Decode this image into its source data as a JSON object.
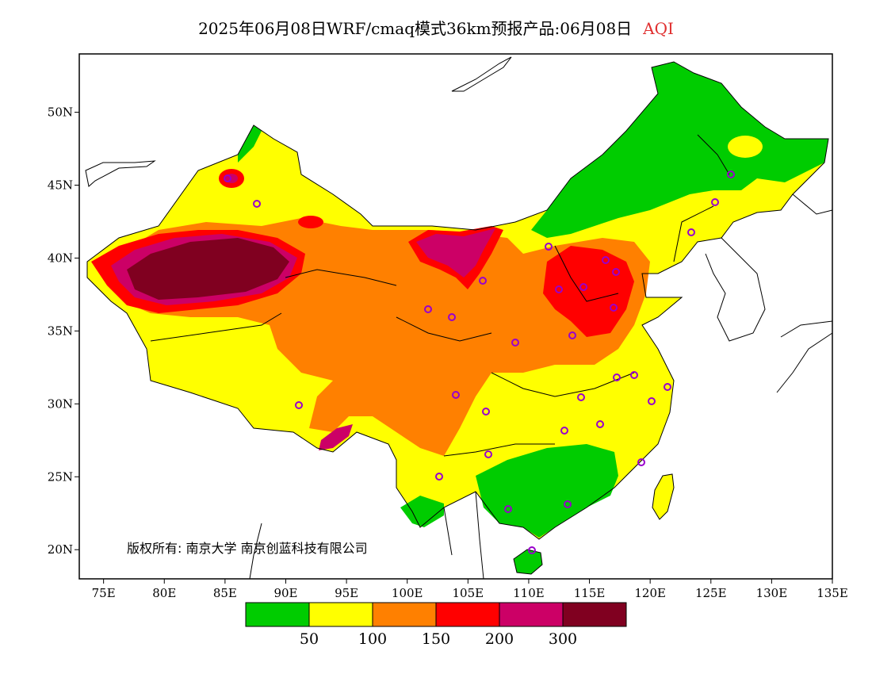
{
  "header": {
    "title": "2025年06月08日WRF/cmaq模式36km预报产品:06月08日",
    "pollutant": "AQI",
    "pollutant_color": "#e03030"
  },
  "map": {
    "lon_ticks": [
      "75E",
      "80E",
      "85E",
      "90E",
      "95E",
      "100E",
      "105E",
      "110E",
      "115E",
      "120E",
      "125E",
      "130E",
      "135E"
    ],
    "lat_ticks": [
      "20N",
      "25N",
      "30N",
      "35N",
      "40N",
      "45N",
      "50N"
    ],
    "lon_range": [
      73,
      135
    ],
    "lat_range": [
      18,
      54
    ],
    "copyright": "版权所有: 南京大学  南京创蓝科技有限公司"
  },
  "colorbar": {
    "colors": [
      "#00cc00",
      "#ffff00",
      "#ff8000",
      "#ff0000",
      "#cc0066",
      "#800020"
    ],
    "labels": [
      "50",
      "100",
      "150",
      "200",
      "300"
    ]
  },
  "colors": {
    "good": "#00cc00",
    "moderate": "#ffff00",
    "usg": "#ff8000",
    "unhealthy": "#ff0000",
    "very_unhealthy": "#cc0066",
    "hazardous": "#800020",
    "station_marker": "#9900cc"
  }
}
